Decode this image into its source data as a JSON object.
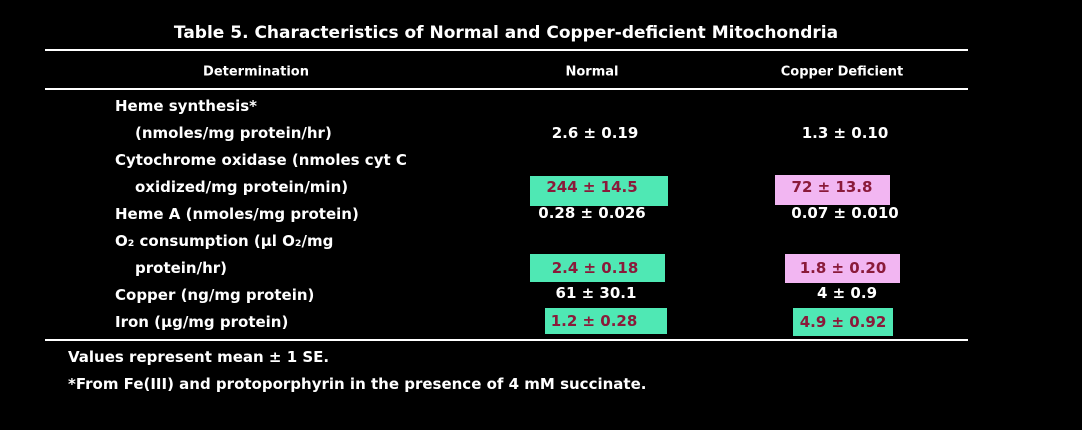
{
  "title": "Table 5.  Characteristics of Normal and Copper-deficient Mitochondria",
  "table": {
    "columns": [
      "Determination",
      "Normal",
      "Copper Deficient"
    ],
    "rows": [
      {
        "label": [
          "Heme synthesis*",
          "(nmoles/mg protein/hr)"
        ],
        "normal": "2.6 ± 0.19",
        "copper_deficient": "1.3 ± 0.10"
      },
      {
        "label": [
          "Cytochrome oxidase (nmoles cyt C",
          "oxidized/mg protein/min)"
        ],
        "normal": "244 ± 14.5",
        "copper_deficient": "72 ± 13.8"
      },
      {
        "label": [
          "Heme A (nmoles/mg protein)"
        ],
        "normal": "0.28 ± 0.026",
        "copper_deficient": "0.07 ± 0.010"
      },
      {
        "label": [
          "O₂ consumption (µl O₂/mg",
          "protein/hr)"
        ],
        "normal": "2.4 ± 0.18",
        "copper_deficient": "1.8 ± 0.20"
      },
      {
        "label": [
          "Copper (ng/mg protein)"
        ],
        "normal": "61 ± 30.1",
        "copper_deficient": "4 ± 0.9"
      },
      {
        "label": [
          "Iron (µg/mg protein)"
        ],
        "normal": "1.2 ± 0.28",
        "copper_deficient": "4.9 ± 0.92"
      }
    ]
  },
  "footnotes": [
    "Values represent mean ± 1 SE.",
    "*From Fe(III) and protoporphyrin in the presence of 4 mM succinate."
  ]
}
